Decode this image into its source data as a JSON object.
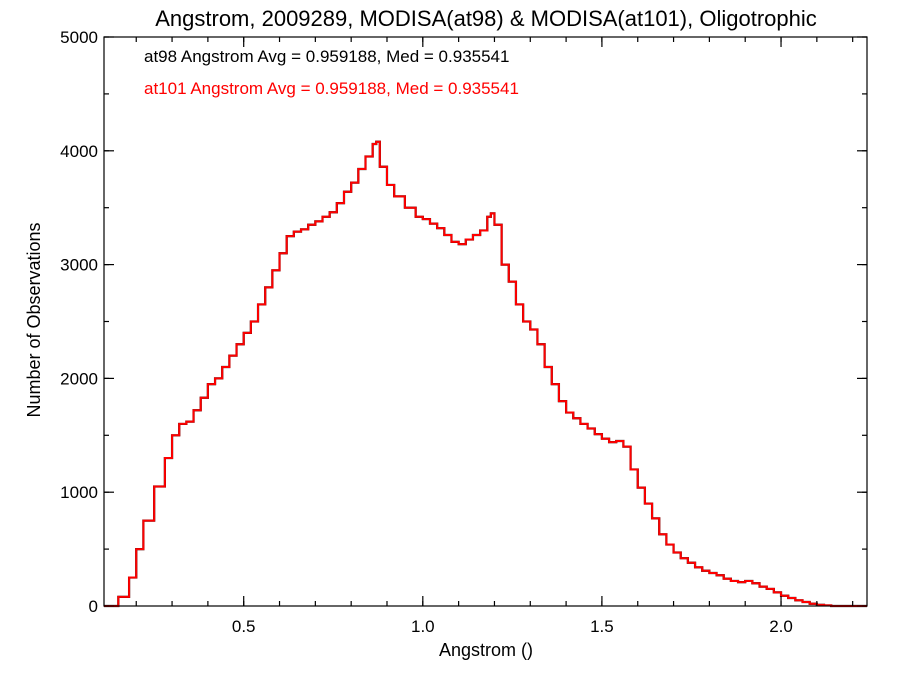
{
  "chart_data": {
    "type": "histogram-step",
    "title": "Angstrom, 2009289, MODISA(at98) & MODISA(at101), Oligotrophic",
    "xlabel": "Angstrom ()",
    "ylabel": "Number of Observations",
    "xlim": [
      0.11,
      2.24
    ],
    "ylim": [
      0,
      5000
    ],
    "xticks": [
      0.5,
      1.0,
      1.5,
      2.0
    ],
    "xtick_labels": [
      "0.5",
      "1.0",
      "1.5",
      "2.0"
    ],
    "yticks": [
      0,
      1000,
      2000,
      3000,
      4000,
      5000
    ],
    "ytick_labels": [
      "0",
      "1000",
      "2000",
      "3000",
      "4000",
      "5000"
    ],
    "xminor_step": 0.1,
    "yminor_step": 500,
    "grid": false,
    "legend": [
      {
        "text": "at98 Angstrom Avg = 0.959188, Med = 0.935541",
        "color": "#000000"
      },
      {
        "text": "at101 Angstrom Avg = 0.959188, Med = 0.935541",
        "color": "#ff0000"
      }
    ],
    "series": [
      {
        "color": "#000000",
        "x": [
          0.11,
          0.15,
          0.18,
          0.2,
          0.22,
          0.25,
          0.28,
          0.3,
          0.32,
          0.34,
          0.36,
          0.38,
          0.4,
          0.42,
          0.44,
          0.46,
          0.48,
          0.5,
          0.52,
          0.54,
          0.56,
          0.58,
          0.6,
          0.62,
          0.64,
          0.66,
          0.68,
          0.7,
          0.72,
          0.74,
          0.76,
          0.78,
          0.8,
          0.82,
          0.84,
          0.86,
          0.87,
          0.88,
          0.9,
          0.92,
          0.95,
          0.98,
          1.0,
          1.02,
          1.04,
          1.06,
          1.08,
          1.1,
          1.12,
          1.14,
          1.16,
          1.18,
          1.19,
          1.2,
          1.22,
          1.24,
          1.26,
          1.28,
          1.3,
          1.32,
          1.34,
          1.36,
          1.38,
          1.4,
          1.42,
          1.44,
          1.46,
          1.48,
          1.5,
          1.52,
          1.54,
          1.56,
          1.58,
          1.6,
          1.62,
          1.64,
          1.66,
          1.68,
          1.7,
          1.72,
          1.74,
          1.76,
          1.78,
          1.8,
          1.82,
          1.84,
          1.86,
          1.88,
          1.9,
          1.92,
          1.94,
          1.96,
          1.98,
          2.0,
          2.02,
          2.04,
          2.06,
          2.08,
          2.1,
          2.12,
          2.14,
          2.16,
          2.24
        ],
        "y": [
          0,
          80,
          250,
          500,
          750,
          1050,
          1300,
          1500,
          1600,
          1620,
          1720,
          1830,
          1950,
          2000,
          2100,
          2200,
          2300,
          2400,
          2500,
          2650,
          2800,
          2950,
          3100,
          3250,
          3290,
          3310,
          3350,
          3380,
          3420,
          3460,
          3540,
          3640,
          3720,
          3840,
          3950,
          4060,
          4080,
          3860,
          3700,
          3600,
          3500,
          3420,
          3400,
          3360,
          3320,
          3260,
          3200,
          3180,
          3220,
          3260,
          3300,
          3420,
          3450,
          3350,
          3000,
          2850,
          2650,
          2500,
          2430,
          2300,
          2100,
          1950,
          1800,
          1700,
          1650,
          1600,
          1560,
          1510,
          1470,
          1440,
          1450,
          1400,
          1200,
          1040,
          900,
          770,
          630,
          540,
          470,
          420,
          380,
          340,
          310,
          290,
          270,
          240,
          220,
          210,
          220,
          200,
          170,
          150,
          120,
          90,
          70,
          50,
          35,
          20,
          10,
          5,
          0,
          0,
          0
        ]
      },
      {
        "color": "#ff0000",
        "x": [
          0.11,
          0.15,
          0.18,
          0.2,
          0.22,
          0.25,
          0.28,
          0.3,
          0.32,
          0.34,
          0.36,
          0.38,
          0.4,
          0.42,
          0.44,
          0.46,
          0.48,
          0.5,
          0.52,
          0.54,
          0.56,
          0.58,
          0.6,
          0.62,
          0.64,
          0.66,
          0.68,
          0.7,
          0.72,
          0.74,
          0.76,
          0.78,
          0.8,
          0.82,
          0.84,
          0.86,
          0.87,
          0.88,
          0.9,
          0.92,
          0.95,
          0.98,
          1.0,
          1.02,
          1.04,
          1.06,
          1.08,
          1.1,
          1.12,
          1.14,
          1.16,
          1.18,
          1.19,
          1.2,
          1.22,
          1.24,
          1.26,
          1.28,
          1.3,
          1.32,
          1.34,
          1.36,
          1.38,
          1.4,
          1.42,
          1.44,
          1.46,
          1.48,
          1.5,
          1.52,
          1.54,
          1.56,
          1.58,
          1.6,
          1.62,
          1.64,
          1.66,
          1.68,
          1.7,
          1.72,
          1.74,
          1.76,
          1.78,
          1.8,
          1.82,
          1.84,
          1.86,
          1.88,
          1.9,
          1.92,
          1.94,
          1.96,
          1.98,
          2.0,
          2.02,
          2.04,
          2.06,
          2.08,
          2.1,
          2.12,
          2.14,
          2.16,
          2.24
        ],
        "y": [
          0,
          80,
          250,
          500,
          750,
          1050,
          1300,
          1500,
          1600,
          1620,
          1720,
          1830,
          1950,
          2000,
          2100,
          2200,
          2300,
          2400,
          2500,
          2650,
          2800,
          2950,
          3100,
          3250,
          3290,
          3310,
          3350,
          3380,
          3420,
          3460,
          3540,
          3640,
          3720,
          3840,
          3950,
          4060,
          4080,
          3860,
          3700,
          3600,
          3500,
          3420,
          3400,
          3360,
          3320,
          3260,
          3200,
          3180,
          3220,
          3260,
          3300,
          3420,
          3450,
          3350,
          3000,
          2850,
          2650,
          2500,
          2430,
          2300,
          2100,
          1950,
          1800,
          1700,
          1650,
          1600,
          1560,
          1510,
          1470,
          1440,
          1450,
          1400,
          1200,
          1040,
          900,
          770,
          630,
          540,
          470,
          420,
          380,
          340,
          310,
          290,
          270,
          240,
          220,
          210,
          220,
          200,
          170,
          150,
          120,
          90,
          70,
          50,
          35,
          20,
          10,
          5,
          0,
          0,
          0
        ]
      }
    ]
  }
}
